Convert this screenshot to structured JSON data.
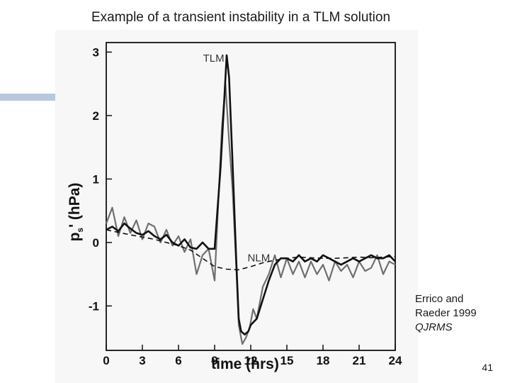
{
  "slide": {
    "title": "Example of a transient instability in a TLM solution",
    "page_number": "41",
    "citation": {
      "line1": "Errico and",
      "line2": "Raeder 1999",
      "line3": "QJRMS"
    }
  },
  "colors": {
    "tlm": "#111111",
    "nlm": "#6f6f6f",
    "dashed": "#111111",
    "accent": "#b9c9dc"
  },
  "chart_data": {
    "type": "line",
    "title": "",
    "xlabel": "time (hrs)",
    "ylabel_main": "p",
    "ylabel_sub": "s",
    "ylabel_rest": "' (hPa)",
    "xlim": [
      0,
      24
    ],
    "ylim": [
      -1.7,
      3.15
    ],
    "x_ticks": [
      0,
      3,
      6,
      9,
      12,
      15,
      18,
      21,
      24
    ],
    "y_ticks": [
      -1,
      0,
      1,
      2,
      3
    ],
    "annotations": [
      {
        "text": "TLM",
        "x": 9.8,
        "y": 2.85
      },
      {
        "text": "NLM",
        "x": 13.6,
        "y": -0.3
      }
    ],
    "series": [
      {
        "name": "TLM",
        "style": "solid",
        "x": [
          0,
          0.5,
          1,
          1.5,
          2,
          2.5,
          3,
          3.5,
          4,
          4.5,
          5,
          5.5,
          6,
          6.5,
          7,
          7.5,
          8,
          8.5,
          9,
          9.5,
          10,
          10.2,
          10.5,
          10.8,
          11,
          11.2,
          11.5,
          11.8,
          12,
          12.5,
          13,
          13.5,
          14,
          14.5,
          15,
          15.5,
          16,
          16.5,
          17,
          17.5,
          18,
          18.5,
          19,
          19.5,
          20,
          20.5,
          21,
          21.5,
          22,
          22.5,
          23,
          23.5,
          24
        ],
        "values": [
          0.2,
          0.25,
          0.18,
          0.3,
          0.22,
          0.15,
          0.12,
          0.18,
          0.1,
          0.05,
          0.12,
          0.0,
          -0.05,
          0.05,
          -0.08,
          -0.1,
          0.0,
          -0.1,
          -0.1,
          1.2,
          2.95,
          2.6,
          1.2,
          -0.3,
          -1.2,
          -1.4,
          -1.45,
          -1.4,
          -1.3,
          -1.2,
          -0.9,
          -0.6,
          -0.35,
          -0.25,
          -0.25,
          -0.3,
          -0.2,
          -0.3,
          -0.25,
          -0.3,
          -0.2,
          -0.25,
          -0.3,
          -0.35,
          -0.3,
          -0.25,
          -0.3,
          -0.25,
          -0.2,
          -0.25,
          -0.25,
          -0.2,
          -0.3
        ]
      },
      {
        "name": "NLM",
        "style": "solid-grey",
        "x": [
          0,
          0.5,
          1,
          1.5,
          2,
          2.5,
          3,
          3.5,
          4,
          4.5,
          5,
          5.5,
          6,
          6.5,
          7,
          7.5,
          8,
          8.5,
          9,
          9.3,
          9.6,
          9.9,
          10.2,
          10.5,
          10.8,
          11,
          11.3,
          11.6,
          11.9,
          12.2,
          12.5,
          13,
          13.5,
          14,
          14.5,
          15,
          15.5,
          16,
          16.5,
          17,
          17.5,
          18,
          18.5,
          19,
          19.5,
          20,
          20.5,
          21,
          21.5,
          22,
          22.5,
          23,
          23.5,
          24
        ],
        "values": [
          0.3,
          0.55,
          0.1,
          0.4,
          0.15,
          0.35,
          0.05,
          0.3,
          0.25,
          0.0,
          0.2,
          -0.05,
          0.1,
          -0.15,
          0.05,
          -0.5,
          -0.2,
          -0.1,
          -0.6,
          0.6,
          1.8,
          2.5,
          1.6,
          0.8,
          -0.4,
          -1.3,
          -1.6,
          -1.5,
          -1.35,
          -1.05,
          -1.2,
          -0.7,
          -0.5,
          -0.2,
          -0.55,
          -0.25,
          -0.5,
          -0.3,
          -0.55,
          -0.3,
          -0.5,
          -0.35,
          -0.6,
          -0.3,
          -0.45,
          -0.35,
          -0.55,
          -0.3,
          -0.45,
          -0.4,
          -0.2,
          -0.5,
          -0.3,
          -0.35
        ]
      },
      {
        "name": "Reference (dashed)",
        "style": "dashed",
        "x": [
          0,
          2,
          4,
          6,
          7,
          8,
          9,
          10,
          11,
          12,
          13,
          14,
          15,
          16,
          17,
          18,
          19,
          20,
          21,
          22,
          23,
          24
        ],
        "values": [
          0.2,
          0.12,
          0.05,
          -0.05,
          -0.12,
          -0.25,
          -0.38,
          -0.42,
          -0.43,
          -0.38,
          -0.32,
          -0.28,
          -0.25,
          -0.23,
          -0.24,
          -0.25,
          -0.25,
          -0.24,
          -0.23,
          -0.24,
          -0.23,
          -0.22
        ]
      }
    ]
  }
}
